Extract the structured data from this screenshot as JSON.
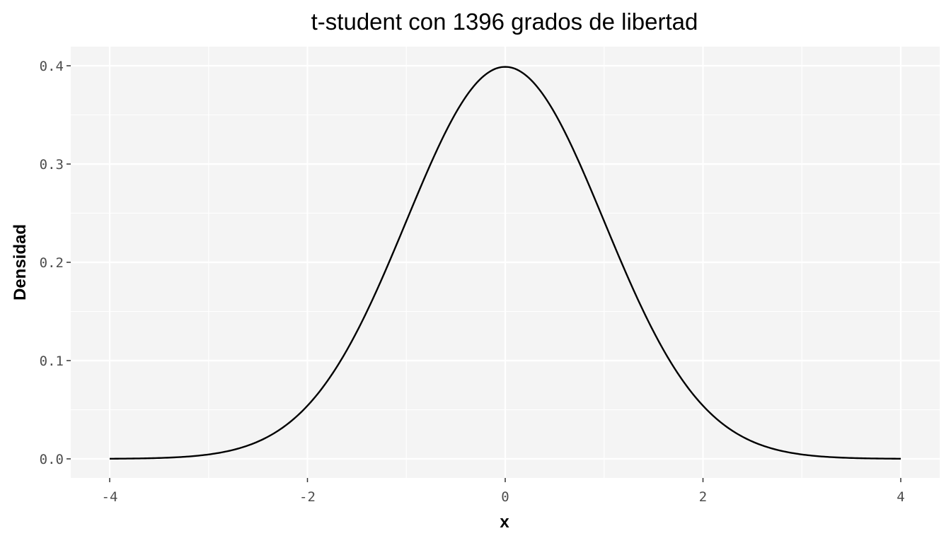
{
  "chart_data": {
    "type": "line",
    "title": "t-student con 1396 grados de libertad",
    "xlabel": "x",
    "ylabel": "Densidad",
    "xlim": [
      -4,
      4
    ],
    "ylim": [
      0,
      0.4
    ],
    "x_ticks": [
      -4,
      -2,
      0,
      2,
      4
    ],
    "x_tick_labels": [
      "-4",
      "-2",
      "0",
      "2",
      "4"
    ],
    "y_ticks": [
      0,
      0.1,
      0.2,
      0.3,
      0.4
    ],
    "y_tick_labels": [
      "0.0",
      "0.1",
      "0.2",
      "0.3",
      "0.4"
    ],
    "grid": true,
    "legend": "none",
    "series": [
      {
        "x": [
          -4,
          -3.5,
          -3,
          -2.5,
          -2,
          -1.5,
          -1,
          -0.5,
          0,
          0.5,
          1,
          1.5,
          2,
          2.5,
          3,
          3.5,
          4
        ],
        "values": [
          0.0001,
          0.0009,
          0.0044,
          0.0176,
          0.054,
          0.1296,
          0.242,
          0.3521,
          0.3989,
          0.3521,
          0.242,
          0.1296,
          0.054,
          0.0176,
          0.0044,
          0.0009,
          0.0001
        ]
      }
    ],
    "colors": {
      "panel": "#f4f4f4",
      "grid": "#ffffff",
      "line": "#000000",
      "tick_text": "#4d4d4d"
    }
  }
}
